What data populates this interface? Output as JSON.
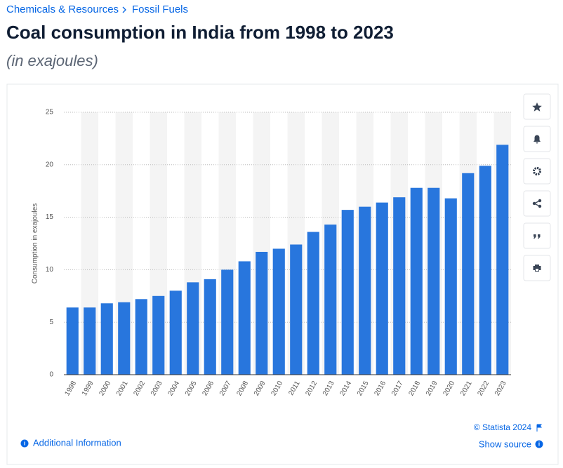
{
  "breadcrumb": [
    "Chemicals & Resources",
    "Fossil Fuels"
  ],
  "chart_data": {
    "type": "bar",
    "title": "Coal consumption in India from 1998 to 2023",
    "subtitle": "(in exajoules)",
    "y_label": "Consumption in exajoules",
    "categories": [
      "1998",
      "1999",
      "2000",
      "2001",
      "2002",
      "2003",
      "2004",
      "2005",
      "2006",
      "2007",
      "2008",
      "2009",
      "2010",
      "2011",
      "2012",
      "2013",
      "2014",
      "2015",
      "2016",
      "2017",
      "2018",
      "2019",
      "2020",
      "2021",
      "2022",
      "2023"
    ],
    "values": [
      6.4,
      6.4,
      6.8,
      6.9,
      7.2,
      7.5,
      8.0,
      8.8,
      9.1,
      10.0,
      10.8,
      11.7,
      12.0,
      12.4,
      13.6,
      14.3,
      15.7,
      16.0,
      16.4,
      16.9,
      17.8,
      17.8,
      16.8,
      19.2,
      19.9,
      21.9
    ],
    "color": "#2876dd",
    "ylim": [
      0,
      25
    ],
    "yticks": [
      0,
      5,
      10,
      15,
      20,
      25
    ],
    "grid": true
  },
  "footer": {
    "copyright": "© Statista 2024",
    "additional": "Additional Information",
    "source": "Show source"
  }
}
